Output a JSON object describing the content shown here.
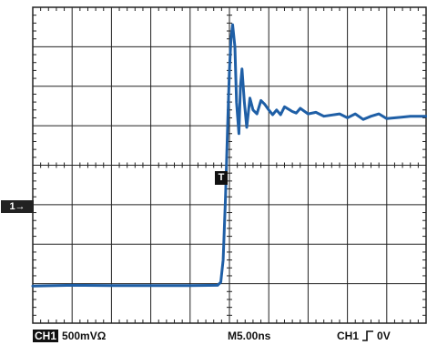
{
  "channel_marker": "1→",
  "trigger_marker": "T",
  "status": {
    "channel_badge": "CH1",
    "volts_per_div": "500mVΩ",
    "timebase": "M5.00ns",
    "trigger_channel": "CH1",
    "trigger_level": "0V"
  },
  "colors": {
    "trace": "#1f5fa6",
    "grid": "#222222",
    "background": "#ffffff"
  },
  "icons": {
    "trigger_slope": "rising-edge-icon"
  },
  "chart_data": {
    "type": "line",
    "title": "",
    "xlabel": "",
    "ylabel": "",
    "grid": true,
    "x_unit": "ns",
    "y_unit": "mV",
    "xlim": [
      -25,
      25
    ],
    "ylim": [
      -2000,
      2000
    ],
    "grid_divisions": {
      "x": 10,
      "y": 8
    },
    "series": [
      {
        "x": [
          -25,
          -20,
          -15,
          -10,
          -5,
          -1.5,
          -1.1,
          -0.8,
          -0.5,
          -0.2,
          0,
          0.2,
          0.4,
          0.7,
          0.9,
          1.2,
          1.4,
          1.6,
          1.9,
          2.2,
          2.6,
          3.0,
          3.5,
          4.0,
          4.5,
          5.0,
          5.5,
          6.0,
          6.5,
          7.0,
          8.0,
          8.5,
          9.0,
          10,
          11,
          12,
          14,
          15,
          16,
          17,
          18,
          19,
          20,
          22,
          23,
          25
        ],
        "y": [
          -1530,
          -1520,
          -1525,
          -1525,
          -1525,
          -1520,
          -1480,
          -1200,
          -400,
          600,
          1200,
          1600,
          1780,
          1500,
          800,
          400,
          1000,
          1220,
          800,
          480,
          850,
          700,
          650,
          820,
          770,
          700,
          640,
          700,
          640,
          740,
          680,
          660,
          720,
          650,
          670,
          620,
          650,
          600,
          650,
          580,
          620,
          650,
          590,
          610,
          620,
          620
        ]
      }
    ]
  }
}
